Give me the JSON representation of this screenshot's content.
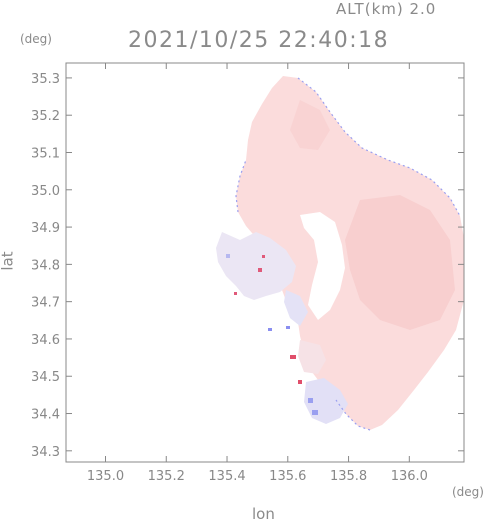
{
  "header": {
    "altitude": "ALT(km) 2.0",
    "timestamp": "2021/10/25 22:40:18"
  },
  "axes": {
    "y_unit": "(deg)",
    "x_unit": "(deg)",
    "x_label": "lon",
    "y_label": "lat"
  },
  "colors": {
    "main_echo": "#fbdcdc",
    "strong_echo": "#f7c8c8",
    "edge_blue": "#9a9ff0",
    "edge_red": "#e04040",
    "light_blue": "#dcdcf6",
    "frame": "#888888"
  },
  "chart_data": {
    "type": "heatmap",
    "xlim": [
      134.87,
      136.18
    ],
    "ylim": [
      34.27,
      35.34
    ],
    "x_ticks": [
      "135.0",
      "135.2",
      "135.4",
      "135.6",
      "135.8",
      "136.0"
    ],
    "y_ticks": [
      "34.3",
      "34.4",
      "34.5",
      "34.6",
      "34.7",
      "34.8",
      "34.9",
      "35.0",
      "35.1",
      "35.2",
      "35.3"
    ]
  }
}
